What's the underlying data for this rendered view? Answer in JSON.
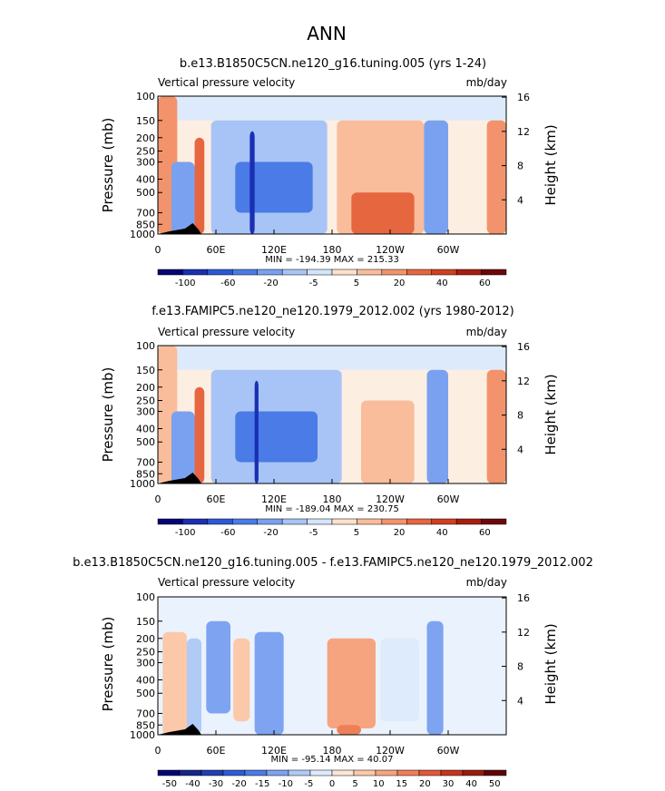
{
  "page_title": "ANN",
  "chart_data": [
    {
      "type": "heatmap",
      "title": "b.e13.B1850C5CN.ne120_g16.tuning.005 (yrs 1-24)",
      "variable_label": "Vertical pressure velocity",
      "units_label": "mb/day",
      "xlabel": "",
      "ylabel": "Pressure (mb)",
      "ylabel_right": "Height (km)",
      "x_ticks": [
        "0",
        "60E",
        "120E",
        "180",
        "120W",
        "60W"
      ],
      "y_ticks": [
        "100",
        "150",
        "200",
        "250",
        "300",
        "400",
        "500",
        "700",
        "850",
        "1000"
      ],
      "y_ticks_right": [
        "16",
        "12",
        "8",
        "4"
      ],
      "xlim": [
        0,
        360
      ],
      "ylim": [
        1000,
        100
      ],
      "y_scale": "log",
      "min_max_text": "MIN = -194.39   MAX = 215.33",
      "colorbar_levels": [
        "-100",
        "-60",
        "-20",
        "-5",
        "5",
        "20",
        "40",
        "60"
      ],
      "levels": [
        -100,
        -80,
        -60,
        -40,
        -20,
        -10,
        -5,
        0,
        5,
        10,
        20,
        30,
        40,
        50,
        60
      ],
      "regions": [
        {
          "lon": [
            0,
            20
          ],
          "p": [
            100,
            1000
          ],
          "level": 3
        },
        {
          "lon": [
            14,
            38
          ],
          "p": [
            300,
            1000
          ],
          "level": -3
        },
        {
          "lon": [
            38,
            48
          ],
          "p": [
            200,
            1000
          ],
          "level": 4
        },
        {
          "lon": [
            55,
            175
          ],
          "p": [
            150,
            1000
          ],
          "level": -2
        },
        {
          "lon": [
            80,
            160
          ],
          "p": [
            300,
            700
          ],
          "level": -4
        },
        {
          "lon": [
            95,
            100
          ],
          "p": [
            180,
            1000
          ],
          "level": -6
        },
        {
          "lon": [
            185,
            275
          ],
          "p": [
            150,
            1000
          ],
          "level": 2
        },
        {
          "lon": [
            200,
            265
          ],
          "p": [
            500,
            1000
          ],
          "level": 4
        },
        {
          "lon": [
            275,
            300
          ],
          "p": [
            150,
            1000
          ],
          "level": -3
        },
        {
          "lon": [
            340,
            360
          ],
          "p": [
            150,
            1000
          ],
          "level": 3
        }
      ]
    },
    {
      "type": "heatmap",
      "title": "f.e13.FAMIPC5.ne120_ne120.1979_2012.002 (yrs 1980-2012)",
      "variable_label": "Vertical pressure velocity",
      "units_label": "mb/day",
      "xlabel": "",
      "ylabel": "Pressure (mb)",
      "ylabel_right": "Height (km)",
      "x_ticks": [
        "0",
        "60E",
        "120E",
        "180",
        "120W",
        "60W"
      ],
      "y_ticks": [
        "100",
        "150",
        "200",
        "250",
        "300",
        "400",
        "500",
        "700",
        "850",
        "1000"
      ],
      "y_ticks_right": [
        "16",
        "12",
        "8",
        "4"
      ],
      "xlim": [
        0,
        360
      ],
      "ylim": [
        1000,
        100
      ],
      "y_scale": "log",
      "min_max_text": "MIN = -189.04   MAX = 230.75",
      "colorbar_levels": [
        "-100",
        "-60",
        "-20",
        "-5",
        "5",
        "20",
        "40",
        "60"
      ],
      "levels": [
        -100,
        -80,
        -60,
        -40,
        -20,
        -10,
        -5,
        0,
        5,
        10,
        20,
        30,
        40,
        50,
        60
      ],
      "regions": [
        {
          "lon": [
            0,
            20
          ],
          "p": [
            100,
            1000
          ],
          "level": 2
        },
        {
          "lon": [
            14,
            38
          ],
          "p": [
            300,
            1000
          ],
          "level": -3
        },
        {
          "lon": [
            38,
            48
          ],
          "p": [
            200,
            1000
          ],
          "level": 4
        },
        {
          "lon": [
            55,
            190
          ],
          "p": [
            150,
            1000
          ],
          "level": -2
        },
        {
          "lon": [
            80,
            165
          ],
          "p": [
            300,
            700
          ],
          "level": -4
        },
        {
          "lon": [
            100,
            104
          ],
          "p": [
            180,
            1000
          ],
          "level": -6
        },
        {
          "lon": [
            210,
            265
          ],
          "p": [
            250,
            1000
          ],
          "level": 2
        },
        {
          "lon": [
            278,
            300
          ],
          "p": [
            150,
            1000
          ],
          "level": -3
        },
        {
          "lon": [
            340,
            360
          ],
          "p": [
            150,
            1000
          ],
          "level": 3
        }
      ]
    },
    {
      "type": "heatmap",
      "title": "b.e13.B1850C5CN.ne120_g16.tuning.005 - f.e13.FAMIPC5.ne120_ne120.1979_2012.002",
      "variable_label": "Vertical pressure velocity",
      "units_label": "mb/day",
      "xlabel": "",
      "ylabel": "Pressure (mb)",
      "ylabel_right": "Height (km)",
      "x_ticks": [
        "0",
        "60E",
        "120E",
        "180",
        "120W",
        "60W"
      ],
      "y_ticks": [
        "100",
        "150",
        "200",
        "250",
        "300",
        "400",
        "500",
        "700",
        "850",
        "1000"
      ],
      "y_ticks_right": [
        "16",
        "12",
        "8",
        "4"
      ],
      "xlim": [
        0,
        360
      ],
      "ylim": [
        1000,
        100
      ],
      "y_scale": "log",
      "min_max_text": "MIN = -95.14   MAX =  40.07",
      "colorbar_levels": [
        "-50",
        "-40",
        "-30",
        "-20",
        "-15",
        "-10",
        "-5",
        "0",
        "5",
        "10",
        "15",
        "20",
        "30",
        "40",
        "50"
      ],
      "levels": [
        -50,
        -40,
        -30,
        -20,
        -15,
        -10,
        -5,
        0,
        5,
        10,
        15,
        20,
        30,
        40,
        50
      ],
      "regions": [
        {
          "lon": [
            5,
            30
          ],
          "p": [
            180,
            1000
          ],
          "level": 2
        },
        {
          "lon": [
            30,
            45
          ],
          "p": [
            200,
            1000
          ],
          "level": -2
        },
        {
          "lon": [
            50,
            75
          ],
          "p": [
            150,
            700
          ],
          "level": -3
        },
        {
          "lon": [
            78,
            95
          ],
          "p": [
            200,
            800
          ],
          "level": 2
        },
        {
          "lon": [
            100,
            130
          ],
          "p": [
            180,
            1000
          ],
          "level": -3
        },
        {
          "lon": [
            175,
            225
          ],
          "p": [
            200,
            900
          ],
          "level": 3
        },
        {
          "lon": [
            185,
            210
          ],
          "p": [
            850,
            1000
          ],
          "level": 4
        },
        {
          "lon": [
            230,
            270
          ],
          "p": [
            200,
            800
          ],
          "level": -1
        },
        {
          "lon": [
            278,
            295
          ],
          "p": [
            150,
            1000
          ],
          "level": -3
        }
      ]
    }
  ]
}
